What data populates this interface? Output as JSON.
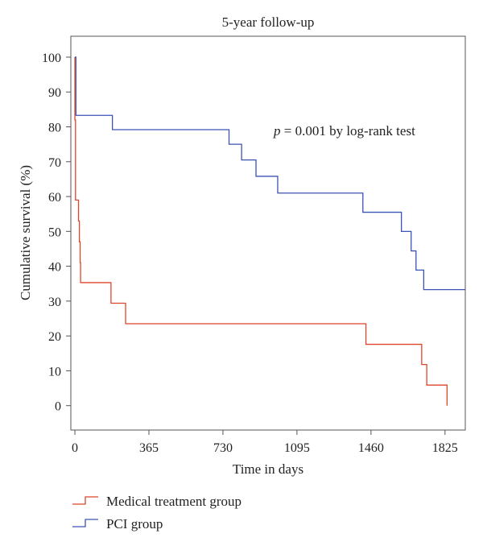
{
  "chart_data": {
    "type": "line",
    "title": "5-year follow-up",
    "xlabel": "Time in days",
    "ylabel": "Cumulative survival (%)",
    "xlim": [
      -20,
      1925
    ],
    "ylim": [
      -7,
      106
    ],
    "x_ticks": [
      0,
      365,
      730,
      1095,
      1460,
      1825
    ],
    "y_ticks": [
      0,
      10,
      20,
      30,
      40,
      50,
      60,
      70,
      80,
      90,
      100
    ],
    "annotation": {
      "p_label": "p",
      "text": " = 0.001 by log-rank test"
    },
    "legend_placement": "bottom-left",
    "series": [
      {
        "name": "Medical treatment group",
        "color": "#e0452b",
        "points": [
          [
            0,
            100
          ],
          [
            0,
            82
          ],
          [
            3,
            82
          ],
          [
            3,
            59
          ],
          [
            18,
            59
          ],
          [
            18,
            53
          ],
          [
            22,
            53
          ],
          [
            22,
            47
          ],
          [
            26,
            47
          ],
          [
            26,
            41
          ],
          [
            28,
            41
          ],
          [
            28,
            35.3
          ],
          [
            178,
            35.3
          ],
          [
            178,
            29.4
          ],
          [
            250,
            29.4
          ],
          [
            250,
            23.5
          ],
          [
            1435,
            23.5
          ],
          [
            1435,
            17.6
          ],
          [
            1710,
            17.6
          ],
          [
            1710,
            11.8
          ],
          [
            1735,
            11.8
          ],
          [
            1735,
            5.9
          ],
          [
            1835,
            5.9
          ],
          [
            1835,
            0
          ]
        ]
      },
      {
        "name": "PCI group",
        "color": "#3b53b5",
        "points": [
          [
            0,
            100
          ],
          [
            5,
            100
          ],
          [
            5,
            83.3
          ],
          [
            185,
            83.3
          ],
          [
            185,
            79.2
          ],
          [
            760,
            79.2
          ],
          [
            760,
            75
          ],
          [
            822,
            75
          ],
          [
            822,
            70.5
          ],
          [
            893,
            70.5
          ],
          [
            893,
            65.8
          ],
          [
            1000,
            65.8
          ],
          [
            1000,
            61
          ],
          [
            1420,
            61
          ],
          [
            1420,
            55.5
          ],
          [
            1610,
            55.5
          ],
          [
            1610,
            50
          ],
          [
            1658,
            50
          ],
          [
            1658,
            44.4
          ],
          [
            1682,
            44.4
          ],
          [
            1682,
            38.9
          ],
          [
            1720,
            38.9
          ],
          [
            1720,
            33.3
          ],
          [
            1925,
            33.3
          ]
        ]
      }
    ]
  }
}
